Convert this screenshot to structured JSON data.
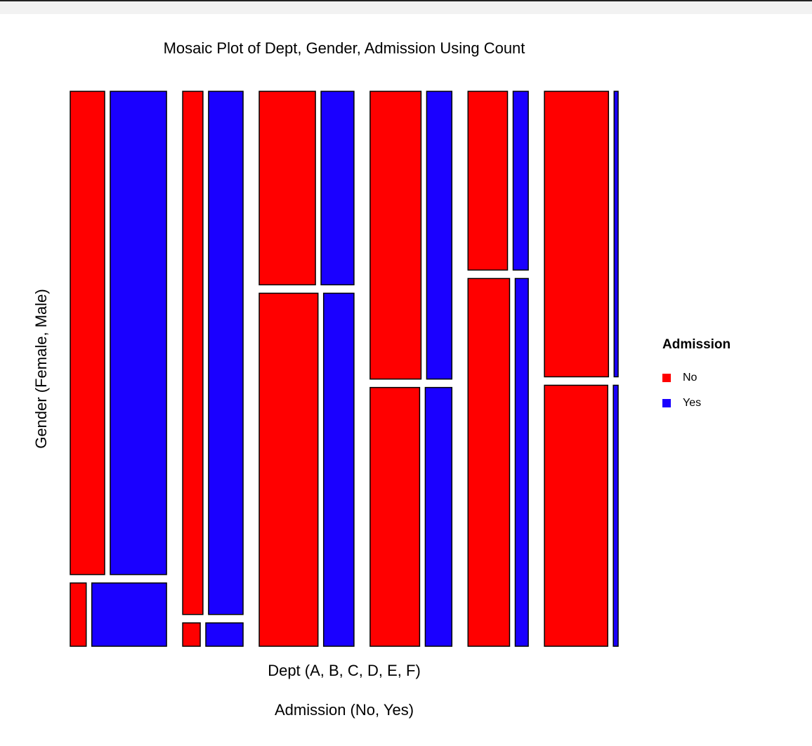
{
  "chart_data": {
    "type": "mosaic",
    "title": "Mosaic Plot of Dept, Gender, Admission Using Count",
    "xlabel": "Dept (A, B, C, D, E, F)",
    "xlabel2": "Admission (No, Yes)",
    "ylabel": "Gender (Female, Male)",
    "legend_title": "Admission",
    "legend_position": "right",
    "series": [
      {
        "name": "No",
        "color": "#ff0000",
        "values": [
          [
            19,
            313
          ],
          [
            8,
            207
          ],
          [
            391,
            205
          ],
          [
            244,
            279
          ],
          [
            299,
            138
          ],
          [
            317,
            351
          ]
        ]
      },
      {
        "name": "Yes",
        "color": "#1a00ff",
        "values": [
          [
            89,
            512
          ],
          [
            17,
            353
          ],
          [
            202,
            120
          ],
          [
            131,
            138
          ],
          [
            94,
            53
          ],
          [
            24,
            22
          ]
        ]
      }
    ]
  }
}
